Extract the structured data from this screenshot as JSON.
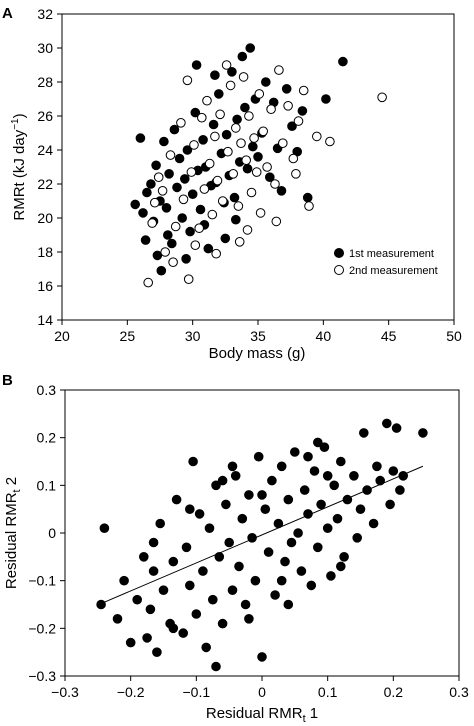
{
  "chart_data": [
    {
      "panel": "A",
      "type": "scatter",
      "xlabel": "Body mass (g)",
      "ylabel_main": "RMRt (kJ day",
      "ylabel_sup": "−1",
      "ylabel_close": ")",
      "xlim": [
        20,
        50
      ],
      "ylim": [
        14,
        32
      ],
      "xticks": [
        "20",
        "25",
        "30",
        "35",
        "40",
        "45",
        "50"
      ],
      "yticks": [
        "14",
        "16",
        "18",
        "20",
        "22",
        "24",
        "26",
        "28",
        "30",
        "32"
      ],
      "legend_position": "bottom-right",
      "grid": false,
      "series": [
        {
          "name": "1st measurement",
          "marker": "filled-circle",
          "color": "#000000"
        },
        {
          "name": "2nd measurement",
          "marker": "open-circle",
          "color": "#000000"
        }
      ],
      "points": [
        [
          26.2,
          20.3,
          0
        ],
        [
          26.5,
          21.5,
          0
        ],
        [
          26.8,
          22.0,
          0
        ],
        [
          27.0,
          19.8,
          0
        ],
        [
          27.2,
          23.1,
          0
        ],
        [
          27.5,
          21.0,
          0
        ],
        [
          27.8,
          24.5,
          0
        ],
        [
          28.0,
          20.6,
          0
        ],
        [
          28.2,
          22.6,
          0
        ],
        [
          28.4,
          18.5,
          0
        ],
        [
          28.6,
          25.2,
          0
        ],
        [
          28.8,
          21.8,
          0
        ],
        [
          29.0,
          23.5,
          0
        ],
        [
          29.2,
          20.0,
          0
        ],
        [
          29.4,
          22.3,
          0
        ],
        [
          29.6,
          24.0,
          0
        ],
        [
          29.8,
          19.2,
          0
        ],
        [
          30.0,
          21.4,
          0
        ],
        [
          30.2,
          26.2,
          0
        ],
        [
          30.4,
          22.8,
          0
        ],
        [
          30.6,
          20.5,
          0
        ],
        [
          30.8,
          24.6,
          0
        ],
        [
          31.0,
          23.0,
          0
        ],
        [
          31.2,
          18.2,
          0
        ],
        [
          31.4,
          21.9,
          0
        ],
        [
          31.6,
          25.5,
          0
        ],
        [
          31.8,
          22.1,
          0
        ],
        [
          32.0,
          27.3,
          0
        ],
        [
          32.2,
          23.8,
          0
        ],
        [
          32.4,
          20.9,
          0
        ],
        [
          32.6,
          24.9,
          0
        ],
        [
          32.8,
          22.5,
          0
        ],
        [
          33.0,
          28.6,
          0
        ],
        [
          33.2,
          21.2,
          0
        ],
        [
          33.4,
          25.8,
          0
        ],
        [
          33.6,
          23.3,
          0
        ],
        [
          33.8,
          29.5,
          0
        ],
        [
          34.0,
          26.5,
          0
        ],
        [
          34.2,
          22.9,
          0
        ],
        [
          34.4,
          30.0,
          0
        ],
        [
          34.6,
          24.2,
          0
        ],
        [
          34.8,
          27.0,
          0
        ],
        [
          35.0,
          23.6,
          0
        ],
        [
          35.3,
          25.0,
          0
        ],
        [
          35.6,
          28.0,
          0
        ],
        [
          35.9,
          22.4,
          0
        ],
        [
          36.2,
          26.8,
          0
        ],
        [
          36.5,
          24.1,
          0
        ],
        [
          36.8,
          21.6,
          0
        ],
        [
          37.2,
          27.6,
          0
        ],
        [
          37.6,
          25.4,
          0
        ],
        [
          38.0,
          23.9,
          0
        ],
        [
          38.4,
          26.3,
          0
        ],
        [
          38.8,
          21.2,
          0
        ],
        [
          40.2,
          27.0,
          0
        ],
        [
          41.5,
          29.2,
          0
        ],
        [
          27.3,
          17.8,
          0
        ],
        [
          28.1,
          19.0,
          0
        ],
        [
          29.5,
          17.6,
          0
        ],
        [
          30.9,
          19.6,
          0
        ],
        [
          32.5,
          18.8,
          0
        ],
        [
          33.3,
          19.9,
          0
        ],
        [
          31.7,
          28.4,
          0
        ],
        [
          30.3,
          29.0,
          0
        ],
        [
          26.4,
          18.7,
          0
        ],
        [
          27.6,
          16.9,
          0
        ],
        [
          25.6,
          20.8,
          0
        ],
        [
          26.0,
          24.7,
          0
        ],
        [
          26.6,
          16.2,
          1
        ],
        [
          27.1,
          20.9,
          1
        ],
        [
          27.4,
          22.4,
          1
        ],
        [
          27.9,
          18.0,
          1
        ],
        [
          28.3,
          23.7,
          1
        ],
        [
          28.7,
          19.5,
          1
        ],
        [
          29.1,
          25.6,
          1
        ],
        [
          29.3,
          21.1,
          1
        ],
        [
          29.7,
          16.4,
          1
        ],
        [
          29.9,
          22.7,
          1
        ],
        [
          30.1,
          24.3,
          1
        ],
        [
          30.5,
          19.4,
          1
        ],
        [
          30.7,
          25.9,
          1
        ],
        [
          30.9,
          21.7,
          1
        ],
        [
          31.1,
          26.9,
          1
        ],
        [
          31.3,
          23.2,
          1
        ],
        [
          31.5,
          20.2,
          1
        ],
        [
          31.7,
          24.8,
          1
        ],
        [
          31.9,
          22.2,
          1
        ],
        [
          32.1,
          26.1,
          1
        ],
        [
          32.3,
          21.0,
          1
        ],
        [
          32.7,
          23.9,
          1
        ],
        [
          32.9,
          27.8,
          1
        ],
        [
          33.1,
          22.6,
          1
        ],
        [
          33.3,
          25.3,
          1
        ],
        [
          33.5,
          20.7,
          1
        ],
        [
          33.7,
          24.4,
          1
        ],
        [
          33.9,
          28.3,
          1
        ],
        [
          34.1,
          23.4,
          1
        ],
        [
          34.3,
          26.0,
          1
        ],
        [
          34.5,
          21.5,
          1
        ],
        [
          34.7,
          24.7,
          1
        ],
        [
          34.9,
          22.7,
          1
        ],
        [
          35.1,
          27.3,
          1
        ],
        [
          35.4,
          25.1,
          1
        ],
        [
          35.7,
          23.0,
          1
        ],
        [
          36.0,
          26.4,
          1
        ],
        [
          36.3,
          22.0,
          1
        ],
        [
          36.6,
          28.7,
          1
        ],
        [
          36.9,
          24.4,
          1
        ],
        [
          37.3,
          26.6,
          1
        ],
        [
          37.7,
          23.5,
          1
        ],
        [
          38.1,
          25.7,
          1
        ],
        [
          38.5,
          27.5,
          1
        ],
        [
          38.9,
          20.7,
          1
        ],
        [
          39.5,
          24.8,
          1
        ],
        [
          40.5,
          24.5,
          1
        ],
        [
          44.5,
          27.1,
          1
        ],
        [
          28.5,
          17.4,
          1
        ],
        [
          30.2,
          18.4,
          1
        ],
        [
          31.8,
          17.9,
          1
        ],
        [
          33.6,
          18.6,
          1
        ],
        [
          34.2,
          19.3,
          1
        ],
        [
          29.6,
          28.1,
          1
        ],
        [
          32.6,
          29.0,
          1
        ],
        [
          26.9,
          19.7,
          1
        ],
        [
          27.7,
          21.6,
          1
        ],
        [
          36.4,
          19.8,
          1
        ],
        [
          37.9,
          22.6,
          1
        ],
        [
          35.2,
          20.3,
          1
        ]
      ]
    },
    {
      "panel": "B",
      "type": "scatter",
      "xlabel_main": "Residual RMR",
      "xlabel_sub": "t",
      "xlabel_tail": " 1",
      "ylabel_main": "Residual RMR",
      "ylabel_sub": "t",
      "ylabel_tail": " 2",
      "xlim": [
        -0.3,
        0.3
      ],
      "ylim": [
        -0.3,
        0.3
      ],
      "xticks": [
        "−0.3",
        "−0.2",
        "−0.1",
        "0",
        "0.1",
        "0.2",
        "0.3"
      ],
      "yticks": [
        "−0.3",
        "−0.2",
        "−0.1",
        "0",
        "0.1",
        "0.2",
        "0.3"
      ],
      "grid": false,
      "fit_line": {
        "x": [
          -0.245,
          0.245
        ],
        "y": [
          -0.148,
          0.14
        ]
      },
      "points": [
        [
          -0.24,
          0.01
        ],
        [
          -0.245,
          -0.15
        ],
        [
          -0.22,
          -0.18
        ],
        [
          -0.21,
          -0.1
        ],
        [
          -0.2,
          -0.23
        ],
        [
          -0.19,
          -0.14
        ],
        [
          -0.18,
          -0.05
        ],
        [
          -0.175,
          -0.22
        ],
        [
          -0.17,
          -0.16
        ],
        [
          -0.165,
          -0.08
        ],
        [
          -0.16,
          -0.25
        ],
        [
          -0.155,
          0.02
        ],
        [
          -0.15,
          -0.12
        ],
        [
          -0.14,
          -0.19
        ],
        [
          -0.135,
          -0.06
        ],
        [
          -0.13,
          0.07
        ],
        [
          -0.12,
          -0.21
        ],
        [
          -0.115,
          -0.03
        ],
        [
          -0.11,
          -0.11
        ],
        [
          -0.105,
          0.15
        ],
        [
          -0.1,
          -0.17
        ],
        [
          -0.095,
          0.04
        ],
        [
          -0.09,
          -0.08
        ],
        [
          -0.085,
          -0.24
        ],
        [
          -0.08,
          0.01
        ],
        [
          -0.075,
          -0.14
        ],
        [
          -0.07,
          0.1
        ],
        [
          -0.065,
          -0.05
        ],
        [
          -0.06,
          -0.19
        ],
        [
          -0.055,
          0.06
        ],
        [
          -0.05,
          -0.02
        ],
        [
          -0.045,
          -0.12
        ],
        [
          -0.04,
          0.12
        ],
        [
          -0.035,
          -0.07
        ],
        [
          -0.03,
          0.03
        ],
        [
          -0.025,
          -0.15
        ],
        [
          -0.02,
          0.08
        ],
        [
          -0.015,
          -0.01
        ],
        [
          -0.01,
          -0.1
        ],
        [
          -0.005,
          0.16
        ],
        [
          0.0,
          -0.26
        ],
        [
          0.005,
          0.05
        ],
        [
          0.01,
          -0.04
        ],
        [
          0.015,
          0.11
        ],
        [
          0.02,
          -0.13
        ],
        [
          0.025,
          0.02
        ],
        [
          0.03,
          0.14
        ],
        [
          0.035,
          -0.06
        ],
        [
          0.04,
          0.07
        ],
        [
          0.045,
          -0.02
        ],
        [
          0.05,
          0.17
        ],
        [
          0.055,
          0.0
        ],
        [
          0.06,
          -0.08
        ],
        [
          0.065,
          0.09
        ],
        [
          0.07,
          0.04
        ],
        [
          0.075,
          -0.11
        ],
        [
          0.08,
          0.13
        ],
        [
          0.085,
          -0.03
        ],
        [
          0.09,
          0.06
        ],
        [
          0.095,
          0.18
        ],
        [
          0.1,
          0.01
        ],
        [
          0.105,
          -0.09
        ],
        [
          0.11,
          0.1
        ],
        [
          0.115,
          0.03
        ],
        [
          0.12,
          0.15
        ],
        [
          0.125,
          -0.05
        ],
        [
          0.13,
          0.07
        ],
        [
          0.14,
          0.12
        ],
        [
          0.145,
          -0.01
        ],
        [
          0.15,
          0.05
        ],
        [
          0.155,
          0.21
        ],
        [
          0.16,
          0.09
        ],
        [
          0.17,
          0.02
        ],
        [
          0.175,
          0.14
        ],
        [
          0.18,
          0.11
        ],
        [
          0.19,
          0.23
        ],
        [
          0.195,
          0.06
        ],
        [
          0.2,
          0.13
        ],
        [
          0.205,
          0.22
        ],
        [
          0.21,
          0.09
        ],
        [
          0.215,
          0.12
        ],
        [
          0.245,
          0.21
        ],
        [
          -0.135,
          -0.2
        ],
        [
          -0.06,
          0.11
        ],
        [
          0.0,
          0.08
        ],
        [
          0.04,
          -0.15
        ],
        [
          0.07,
          0.16
        ],
        [
          -0.02,
          -0.18
        ],
        [
          -0.11,
          0.05
        ],
        [
          0.12,
          -0.07
        ],
        [
          -0.07,
          -0.28
        ],
        [
          0.085,
          0.19
        ],
        [
          -0.165,
          -0.02
        ],
        [
          0.03,
          -0.1
        ],
        [
          -0.045,
          0.14
        ],
        [
          0.1,
          0.12
        ]
      ]
    }
  ]
}
